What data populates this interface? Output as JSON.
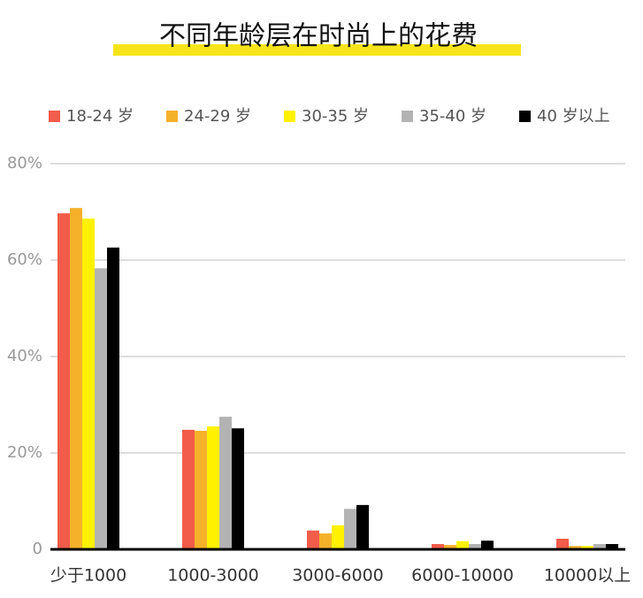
{
  "chart_data": {
    "type": "bar",
    "title": "不同年龄层在时尚上的花费",
    "categories": [
      "少于1000",
      "1000-3000",
      "3000-6000",
      "6000-10000",
      "10000以上"
    ],
    "series": [
      {
        "name": "18-24 岁",
        "color": "#f25c4a",
        "values": [
          69.7,
          24.8,
          3.9,
          1.1,
          2.2
        ]
      },
      {
        "name": "24-29 岁",
        "color": "#f5b12a",
        "values": [
          70.8,
          24.6,
          3.3,
          0.9,
          0.7
        ]
      },
      {
        "name": "30-35 岁",
        "color": "#fff100",
        "values": [
          68.6,
          25.5,
          5.0,
          1.7,
          0.7
        ]
      },
      {
        "name": "35-40 岁",
        "color": "#b3b3b3",
        "values": [
          58.3,
          27.5,
          8.4,
          1.1,
          1.1
        ]
      },
      {
        "name": "40 岁以上",
        "color": "#000000",
        "values": [
          62.6,
          25.1,
          9.2,
          1.8,
          1.1
        ]
      }
    ],
    "ylim": [
      0,
      80
    ],
    "yticks": [
      0,
      {
        "value": 20,
        "label": "20%"
      },
      {
        "value": 40,
        "label": "40%"
      },
      {
        "value": 60,
        "label": "60%"
      },
      {
        "value": 80,
        "label": "80%"
      }
    ],
    "grid": true,
    "legend": "top"
  }
}
